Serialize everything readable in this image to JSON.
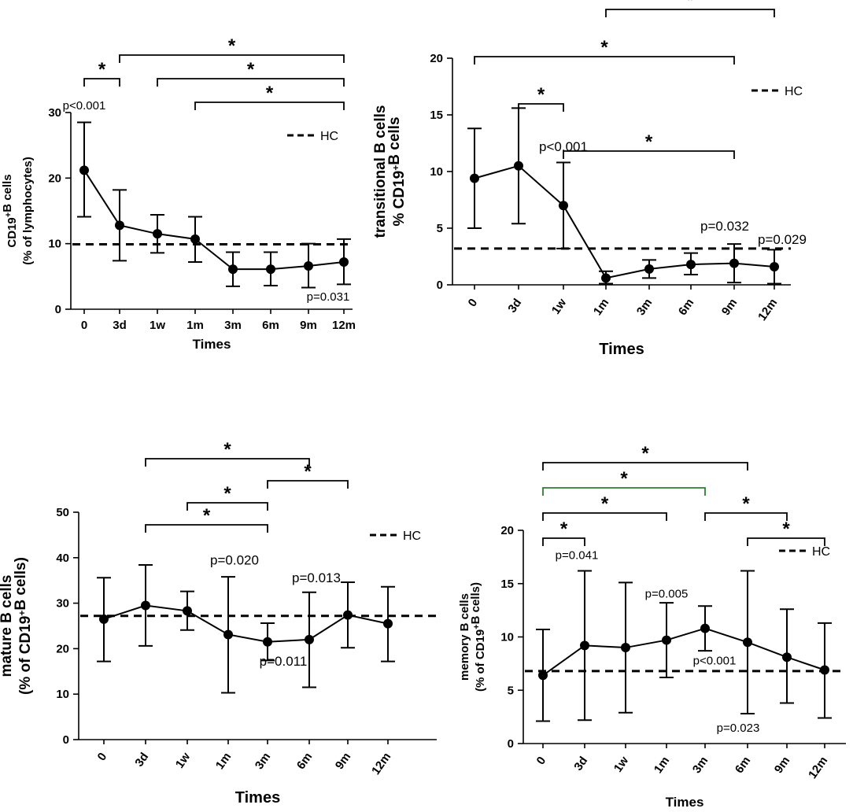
{
  "figure": {
    "x_title": "Times",
    "legend_label": "HC",
    "colors": {
      "main": "#000000",
      "green_bracket": "#2e7d32"
    }
  },
  "chart_data": [
    {
      "type": "line",
      "id": "A",
      "title": "",
      "xlabel": "Times",
      "ylabel_lines": [
        [
          {
            "t": "CD19"
          },
          {
            "t": "+",
            "sup": true
          },
          {
            "t": "B cells"
          }
        ],
        [
          {
            "t": "(% of lymphocytes)"
          }
        ]
      ],
      "categories": [
        "0",
        "3d",
        "1w",
        "1m",
        "3m",
        "6m",
        "9m",
        "12m"
      ],
      "rotate_ticks": false,
      "values": [
        21.2,
        12.8,
        11.5,
        10.7,
        6.1,
        6.1,
        6.6,
        7.2
      ],
      "err_low": [
        14.1,
        7.4,
        8.6,
        7.2,
        3.5,
        3.6,
        3.3,
        3.8
      ],
      "err_high": [
        28.5,
        18.2,
        14.4,
        14.1,
        8.7,
        8.7,
        10.0,
        10.7
      ],
      "hc": 9.9,
      "ylim": [
        0,
        30
      ],
      "yticks": [
        0,
        10,
        20,
        30
      ],
      "annotations": [
        {
          "text": "p<0.001",
          "at_cat": 0,
          "at_y": 30.5,
          "dx": 0
        },
        {
          "text": "p=0.031",
          "at_cat": 7,
          "at_y": 1.3,
          "dx": -20
        }
      ],
      "brackets": [
        {
          "from": 0,
          "to": 1,
          "level": 0,
          "label": "*"
        },
        {
          "from": 1,
          "to": 7,
          "level": 1,
          "label": "*"
        },
        {
          "from": 2,
          "to": 7,
          "level": 0,
          "label": "*"
        },
        {
          "from": 3,
          "to": 7,
          "level": -1,
          "label": "*"
        }
      ]
    },
    {
      "type": "line",
      "id": "B",
      "title": "",
      "xlabel": "Times",
      "ylabel_lines": [
        [
          {
            "t": "transitional B cells"
          }
        ],
        [
          {
            "t": "% CD19"
          },
          {
            "t": "+",
            "sup": true
          },
          {
            "t": "B cells"
          }
        ]
      ],
      "categories": [
        "0",
        "3d",
        "1w",
        "1m",
        "3m",
        "6m",
        "9m",
        "12m"
      ],
      "rotate_ticks": true,
      "values": [
        9.4,
        10.5,
        7.0,
        0.6,
        1.4,
        1.8,
        1.9,
        1.6
      ],
      "err_low": [
        5.0,
        5.4,
        3.2,
        0.1,
        0.6,
        0.9,
        0.2,
        0.1
      ],
      "err_high": [
        13.8,
        15.6,
        10.8,
        1.2,
        2.2,
        2.8,
        3.6,
        3.1
      ],
      "hc": 3.2,
      "ylim": [
        0,
        20
      ],
      "yticks": [
        0,
        5,
        10,
        15,
        20
      ],
      "annotations": [
        {
          "text": "p<0.001",
          "at_cat": 2,
          "at_y": 11.8,
          "dx": 0
        },
        {
          "text": "p=0.032",
          "at_cat": 6,
          "at_y": 4.8,
          "dx": -12
        },
        {
          "text": "p=0.029",
          "at_cat": 7,
          "at_y": 3.6,
          "dx": 10
        }
      ],
      "brackets": [
        {
          "from": 0,
          "to": 6,
          "level": 1,
          "label": "*"
        },
        {
          "from": 1,
          "to": 2,
          "level": 0,
          "label": "*"
        },
        {
          "from": 2,
          "to": 6,
          "level": -1,
          "label": "*"
        },
        {
          "from": 3,
          "to": 7,
          "level": 2,
          "label": "*"
        }
      ]
    },
    {
      "type": "line",
      "id": "C",
      "title": "",
      "xlabel": "Times",
      "ylabel_lines": [
        [
          {
            "t": "mature B cells"
          }
        ],
        [
          {
            "t": "(% of CD19"
          },
          {
            "t": "+",
            "sup": true
          },
          {
            "t": "B cells)"
          }
        ]
      ],
      "categories": [
        "0",
        "3d",
        "1w",
        "1m",
        "3m",
        "6m",
        "9m",
        "12m"
      ],
      "rotate_ticks": true,
      "values": [
        26.5,
        29.5,
        28.3,
        23.1,
        21.5,
        22.0,
        27.4,
        25.5
      ],
      "err_low": [
        17.2,
        20.6,
        24.1,
        10.3,
        17.4,
        11.5,
        20.2,
        17.2
      ],
      "err_high": [
        35.6,
        38.4,
        32.6,
        35.8,
        25.6,
        32.4,
        34.6,
        33.6
      ],
      "hc": 27.2,
      "ylim": [
        0,
        50
      ],
      "yticks": [
        0,
        10,
        20,
        30,
        40,
        50
      ],
      "annotations": [
        {
          "text": "p=0.020",
          "at_cat": 3,
          "at_y": 38.5,
          "dx": 8
        },
        {
          "text": "p=0.013",
          "at_cat": 6,
          "at_y": 34.6,
          "dx": -40
        },
        {
          "text": "p=0.011",
          "at_cat": 4,
          "at_y": 16.3,
          "dx": 20
        }
      ],
      "brackets": [
        {
          "from": 1,
          "to": 4,
          "level": 0,
          "label": "*"
        },
        {
          "from": 2,
          "to": 4,
          "level": 1,
          "label": "*"
        },
        {
          "from": 4,
          "to": 6,
          "level": 2,
          "label": "*"
        },
        {
          "from": 1,
          "to": 5,
          "level": 3,
          "label": "*"
        }
      ]
    },
    {
      "type": "line",
      "id": "D",
      "title": "",
      "xlabel": "Times",
      "ylabel_lines": [
        [
          {
            "t": "memory B cells"
          }
        ],
        [
          {
            "t": "(% of CD19"
          },
          {
            "t": "+",
            "sup": true
          },
          {
            "t": "B cells)"
          }
        ]
      ],
      "categories": [
        "0",
        "3d",
        "1w",
        "1m",
        "3m",
        "6m",
        "9m",
        "12m"
      ],
      "rotate_ticks": true,
      "values": [
        6.4,
        9.2,
        9.0,
        9.7,
        10.8,
        9.5,
        8.1,
        6.9
      ],
      "err_low": [
        2.1,
        2.2,
        2.9,
        6.2,
        8.7,
        2.8,
        3.8,
        2.4
      ],
      "err_high": [
        10.7,
        16.2,
        15.1,
        13.2,
        12.9,
        16.2,
        12.6,
        11.3
      ],
      "hc": 6.8,
      "ylim": [
        0,
        20
      ],
      "yticks": [
        0,
        5,
        10,
        15,
        20
      ],
      "annotations": [
        {
          "text": "p=0.041",
          "at_cat": 1,
          "at_y": 17.3,
          "dx": -10
        },
        {
          "text": "p=0.005",
          "at_cat": 3,
          "at_y": 13.7,
          "dx": 0
        },
        {
          "text": "p<0.001",
          "at_cat": 4,
          "at_y": 7.4,
          "dx": 12
        },
        {
          "text": "p=0.023",
          "at_cat": 5,
          "at_y": 1.1,
          "dx": -12
        }
      ],
      "brackets": [
        {
          "from": 0,
          "to": 1,
          "level": 0,
          "label": "*"
        },
        {
          "from": 0,
          "to": 3,
          "level": 1,
          "label": "*"
        },
        {
          "from": 0,
          "to": 4,
          "level": 2,
          "label": "*",
          "color": "green"
        },
        {
          "from": 0,
          "to": 5,
          "level": 3,
          "label": "*"
        },
        {
          "from": 4,
          "to": 6,
          "level": 1,
          "label": "*"
        },
        {
          "from": 5,
          "to": 7,
          "level": 0,
          "label": "*"
        }
      ]
    }
  ]
}
